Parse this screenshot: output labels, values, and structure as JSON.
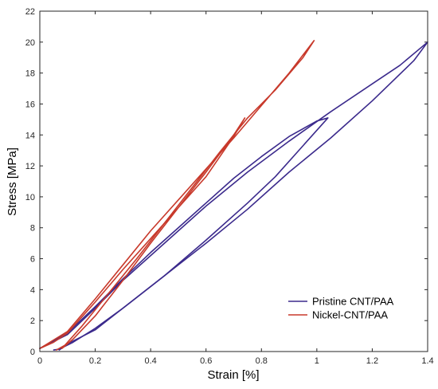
{
  "chart_data": {
    "type": "line",
    "title": "",
    "xlabel": "Strain [%]",
    "ylabel": "Stress [MPa]",
    "xlim": [
      0,
      1.4
    ],
    "ylim": [
      0,
      22
    ],
    "xticks": [
      0,
      0.2,
      0.4,
      0.6,
      0.8,
      1,
      1.2,
      1.4
    ],
    "xtick_labels": [
      "0",
      "0.2",
      "0.4",
      "0.6",
      "0.8",
      "1",
      "1.2",
      "1.4"
    ],
    "yticks": [
      0,
      2,
      4,
      6,
      8,
      10,
      12,
      14,
      16,
      18,
      20,
      22
    ],
    "ytick_labels": [
      "0",
      "2",
      "4",
      "6",
      "8",
      "10",
      "12",
      "14",
      "16",
      "18",
      "20",
      "22"
    ],
    "grid": false,
    "legend_position": "bottom-right",
    "series": [
      {
        "name": "Pristine CNT/PAA",
        "color": "#3b2a8c",
        "loops": [
          {
            "x": [
              0.0,
              0.1,
              0.2,
              0.3,
              0.4,
              0.5,
              0.6,
              0.7,
              0.8,
              0.9,
              1.0,
              1.04,
              0.95,
              0.85,
              0.75,
              0.6,
              0.45,
              0.3,
              0.2,
              0.12,
              0.07,
              0.05
            ],
            "y": [
              0.2,
              1.2,
              2.9,
              4.7,
              6.4,
              8.0,
              9.6,
              11.2,
              12.6,
              13.9,
              14.9,
              15.1,
              13.3,
              11.3,
              9.6,
              7.2,
              4.9,
              2.8,
              1.5,
              0.6,
              0.15,
              0.1
            ]
          },
          {
            "x": [
              0.0,
              0.1,
              0.2,
              0.3,
              0.45,
              0.6,
              0.75,
              0.9,
              1.05,
              1.2,
              1.3,
              1.4,
              1.35,
              1.2,
              1.05,
              0.9,
              0.75,
              0.6,
              0.45,
              0.3,
              0.2,
              0.1,
              0.07
            ],
            "y": [
              0.2,
              1.1,
              2.8,
              4.6,
              7.0,
              9.4,
              11.6,
              13.6,
              15.5,
              17.3,
              18.5,
              20.0,
              18.8,
              16.2,
              13.8,
              11.6,
              9.2,
              7.0,
              4.9,
              2.8,
              1.4,
              0.5,
              0.1
            ]
          }
        ]
      },
      {
        "name": "Nickel-CNT/PAA",
        "color": "#c8392b",
        "loops": [
          {
            "x": [
              0.0,
              0.05,
              0.1,
              0.2,
              0.3,
              0.4,
              0.5,
              0.6,
              0.7,
              0.74,
              0.7,
              0.6,
              0.5,
              0.4,
              0.3,
              0.2,
              0.12,
              0.08
            ],
            "y": [
              0.2,
              0.6,
              1.2,
              3.2,
              5.3,
              7.3,
              9.3,
              11.3,
              13.9,
              15.1,
              14.0,
              11.6,
              9.3,
              7.0,
              4.6,
              2.3,
              0.8,
              0.2
            ]
          },
          {
            "x": [
              0.0,
              0.1,
              0.2,
              0.3,
              0.4,
              0.5,
              0.6,
              0.7,
              0.8,
              0.9,
              0.99,
              0.95,
              0.85,
              0.75,
              0.65,
              0.55,
              0.45,
              0.35,
              0.25,
              0.15,
              0.09,
              0.06
            ],
            "y": [
              0.2,
              1.3,
              3.4,
              5.6,
              7.8,
              9.8,
              11.8,
              13.8,
              15.9,
              18.0,
              20.1,
              19.0,
              16.9,
              15.1,
              12.9,
              10.6,
              8.3,
              6.0,
              3.8,
              1.6,
              0.4,
              0.1
            ]
          }
        ]
      }
    ]
  }
}
